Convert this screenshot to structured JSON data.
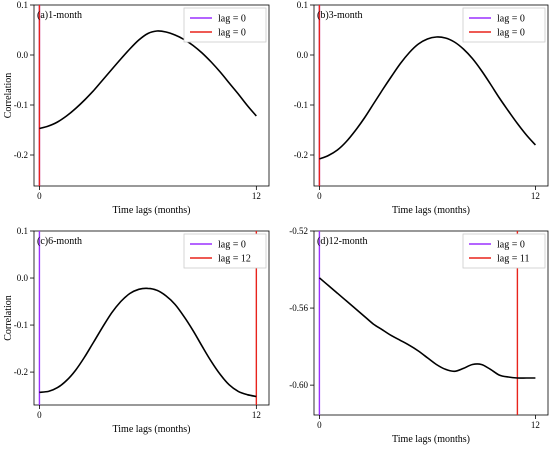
{
  "chart_data": [
    {
      "type": "line",
      "title": "(a)1-month",
      "xlabel": "Time lags (months)",
      "ylabel": "Correlation",
      "xlim": [
        -0.3,
        12.7
      ],
      "ylim": [
        -0.262,
        0.1
      ],
      "xticks": [
        0,
        12
      ],
      "yticks": [
        0.1,
        0.0,
        -0.1,
        -0.2
      ],
      "ytick_labels": [
        "0.1",
        "0.0",
        "-0.1",
        "-0.2"
      ],
      "x": [
        0,
        0.5,
        1,
        1.5,
        2,
        2.5,
        3,
        3.5,
        4,
        4.5,
        5,
        5.5,
        6,
        6.5,
        7,
        7.5,
        8,
        8.5,
        9,
        9.5,
        10,
        10.5,
        11,
        11.5,
        12
      ],
      "y": [
        -0.147,
        -0.142,
        -0.134,
        -0.122,
        -0.107,
        -0.09,
        -0.071,
        -0.05,
        -0.029,
        -0.008,
        0.012,
        0.03,
        0.043,
        0.048,
        0.046,
        0.04,
        0.031,
        0.019,
        0.004,
        -0.014,
        -0.034,
        -0.056,
        -0.078,
        -0.101,
        -0.122
      ],
      "vlines": [
        {
          "label": "lag = 0",
          "color": "#9b30ff",
          "x": 0
        },
        {
          "label": "lag = 0",
          "color": "#e8231c",
          "x": 0
        }
      ],
      "legend_loc": "upper right"
    },
    {
      "type": "line",
      "title": "(b)3-month",
      "xlabel": "Time lags (months)",
      "ylabel": "",
      "xlim": [
        -0.3,
        12.7
      ],
      "ylim": [
        -0.262,
        0.1
      ],
      "xticks": [
        0,
        12
      ],
      "yticks": [
        0.1,
        0.0,
        -0.1,
        -0.2
      ],
      "ytick_labels": [
        "0.1",
        "0.0",
        "-0.1",
        "-0.2"
      ],
      "x": [
        0,
        0.5,
        1,
        1.5,
        2,
        2.5,
        3,
        3.5,
        4,
        4.5,
        5,
        5.5,
        6,
        6.5,
        7,
        7.5,
        8,
        8.5,
        9,
        9.5,
        10,
        10.5,
        11,
        11.5,
        12
      ],
      "y": [
        -0.208,
        -0.201,
        -0.19,
        -0.173,
        -0.151,
        -0.126,
        -0.098,
        -0.07,
        -0.043,
        -0.017,
        0.005,
        0.022,
        0.032,
        0.036,
        0.034,
        0.026,
        0.012,
        -0.007,
        -0.031,
        -0.058,
        -0.086,
        -0.112,
        -0.137,
        -0.16,
        -0.18
      ],
      "vlines": [
        {
          "label": "lag = 0",
          "color": "#9b30ff",
          "x": 0
        },
        {
          "label": "lag = 0",
          "color": "#e8231c",
          "x": 0
        }
      ],
      "legend_loc": "upper right"
    },
    {
      "type": "line",
      "title": "(c)6-month",
      "xlabel": "Time lags (months)",
      "ylabel": "Correlation",
      "xlim": [
        -0.3,
        12.7
      ],
      "ylim": [
        -0.27,
        0.1
      ],
      "xticks": [
        0,
        12
      ],
      "yticks": [
        0.1,
        0.0,
        -0.1,
        -0.2
      ],
      "ytick_labels": [
        "0.1",
        "0.0",
        "-0.1",
        "-0.2"
      ],
      "x": [
        0,
        0.5,
        1,
        1.5,
        2,
        2.5,
        3,
        3.5,
        4,
        4.5,
        5,
        5.5,
        6,
        6.5,
        7,
        7.5,
        8,
        8.5,
        9,
        9.5,
        10,
        10.5,
        11,
        11.5,
        12
      ],
      "y": [
        -0.243,
        -0.241,
        -0.233,
        -0.218,
        -0.196,
        -0.168,
        -0.136,
        -0.104,
        -0.074,
        -0.05,
        -0.033,
        -0.024,
        -0.022,
        -0.026,
        -0.038,
        -0.056,
        -0.082,
        -0.112,
        -0.145,
        -0.177,
        -0.205,
        -0.227,
        -0.241,
        -0.248,
        -0.252
      ],
      "vlines": [
        {
          "label": "lag = 0",
          "color": "#9b30ff",
          "x": 0
        },
        {
          "label": "lag = 12",
          "color": "#e8231c",
          "x": 12
        }
      ],
      "legend_loc": "upper right"
    },
    {
      "type": "line",
      "title": "(d)12-month",
      "xlabel": "Time lags (months)",
      "ylabel": "",
      "xlim": [
        -0.3,
        12.7
      ],
      "ylim": [
        -0.6155,
        -0.52
      ],
      "xticks": [
        0,
        12
      ],
      "yticks": [
        -0.52,
        -0.56,
        -0.6
      ],
      "ytick_labels": [
        "-0.52",
        "-0.56",
        "-0.60"
      ],
      "x": [
        0,
        0.5,
        1,
        1.5,
        2,
        2.5,
        3,
        3.5,
        4,
        4.5,
        5,
        5.5,
        6,
        6.5,
        7,
        7.5,
        8,
        8.5,
        9,
        9.5,
        10,
        10.5,
        11,
        11.5,
        12
      ],
      "y": [
        -0.5443,
        -0.5483,
        -0.5523,
        -0.5563,
        -0.5603,
        -0.5643,
        -0.5683,
        -0.5713,
        -0.5743,
        -0.5768,
        -0.5793,
        -0.5823,
        -0.5858,
        -0.5893,
        -0.5918,
        -0.5928,
        -0.5913,
        -0.5893,
        -0.5893,
        -0.5918,
        -0.5948,
        -0.5958,
        -0.5963,
        -0.5963,
        -0.5963
      ],
      "vlines": [
        {
          "label": "lag = 0",
          "color": "#9b30ff",
          "x": 0
        },
        {
          "label": "lag = 11",
          "color": "#e8231c",
          "x": 11
        }
      ],
      "legend_loc": "upper right"
    }
  ]
}
